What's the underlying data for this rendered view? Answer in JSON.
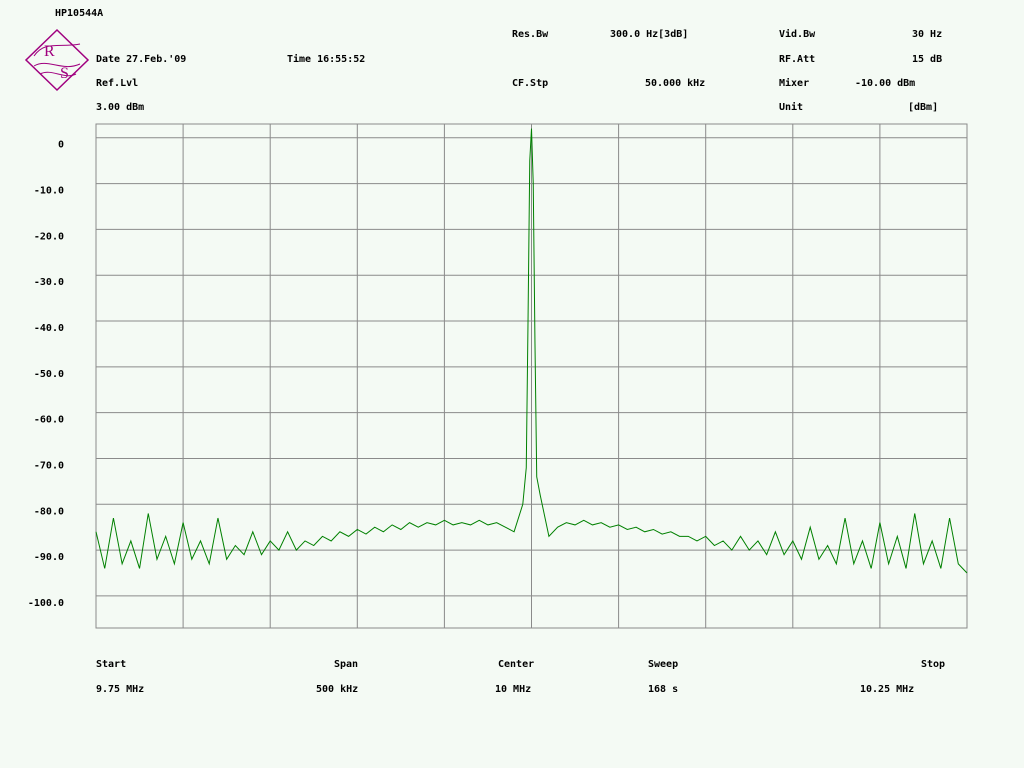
{
  "header": {
    "title": "HP10544A",
    "logo": [
      "R",
      "S"
    ],
    "date": "Date 27.Feb.'09",
    "time": "Time 16:55:52",
    "ref_lvl": {
      "label": "Ref.Lvl",
      "value": "3.00 dBm"
    },
    "res_bw": {
      "label": "Res.Bw",
      "value": "300.0 Hz[3dB]"
    },
    "cf_stp": {
      "label": "CF.Stp",
      "value": "50.000 kHz"
    },
    "vid_bw": {
      "label": "Vid.Bw",
      "value": "30 Hz"
    },
    "rf_att": {
      "label": "RF.Att",
      "value": "15 dB"
    },
    "mixer": {
      "label": "Mixer",
      "value": "-10.00 dBm"
    },
    "unit": {
      "label": "Unit",
      "value": "[dBm]"
    }
  },
  "footer": {
    "start": {
      "label": "Start",
      "value": "9.75 MHz"
    },
    "span": {
      "label": "Span",
      "value": "500 kHz"
    },
    "center": {
      "label": "Center",
      "value": "10 MHz"
    },
    "sweep": {
      "label": "Sweep",
      "value": "168 s"
    },
    "stop": {
      "label": "Stop",
      "value": "10.25 MHz"
    }
  },
  "chart_data": {
    "type": "line",
    "color": "#008000",
    "grid": true,
    "xlim": [
      9.75,
      10.25
    ],
    "xticks": [
      9.75,
      9.8,
      9.85,
      9.9,
      9.95,
      10.0,
      10.05,
      10.1,
      10.15,
      10.2,
      10.25
    ],
    "ylim": [
      -107,
      3
    ],
    "yticks": [
      0,
      {
        "value": -10,
        "label": "-10.0"
      },
      {
        "value": -20,
        "label": "-20.0"
      },
      {
        "value": -30,
        "label": "-30.0"
      },
      {
        "value": -40,
        "label": "-40.0"
      },
      {
        "value": -50,
        "label": "-50.0"
      },
      {
        "value": -60,
        "label": "-60.0"
      },
      {
        "value": -70,
        "label": "-70.0"
      },
      {
        "value": -80,
        "label": "-80.0"
      },
      {
        "value": -90,
        "label": "-90.0"
      },
      {
        "value": -100,
        "label": "-100.0"
      }
    ],
    "x": [
      9.75,
      9.755,
      9.76,
      9.765,
      9.77,
      9.775,
      9.78,
      9.785,
      9.79,
      9.795,
      9.8,
      9.805,
      9.81,
      9.815,
      9.82,
      9.825,
      9.83,
      9.835,
      9.84,
      9.845,
      9.85,
      9.855,
      9.86,
      9.865,
      9.87,
      9.875,
      9.88,
      9.885,
      9.89,
      9.895,
      9.9,
      9.905,
      9.91,
      9.915,
      9.92,
      9.925,
      9.93,
      9.935,
      9.94,
      9.945,
      9.95,
      9.955,
      9.96,
      9.965,
      9.97,
      9.975,
      9.98,
      9.985,
      9.99,
      9.995,
      9.997,
      9.998,
      9.999,
      10.0,
      10.001,
      10.002,
      10.003,
      10.005,
      10.01,
      10.015,
      10.02,
      10.025,
      10.03,
      10.035,
      10.04,
      10.045,
      10.05,
      10.055,
      10.06,
      10.065,
      10.07,
      10.075,
      10.08,
      10.085,
      10.09,
      10.095,
      10.1,
      10.105,
      10.11,
      10.115,
      10.12,
      10.125,
      10.13,
      10.135,
      10.14,
      10.145,
      10.15,
      10.155,
      10.16,
      10.165,
      10.17,
      10.175,
      10.18,
      10.185,
      10.19,
      10.195,
      10.2,
      10.205,
      10.21,
      10.215,
      10.22,
      10.225,
      10.23,
      10.235,
      10.24,
      10.245,
      10.25
    ],
    "values": [
      -86,
      -94,
      -83,
      -93,
      -88,
      -94,
      -82,
      -92,
      -87,
      -93,
      -84,
      -92,
      -88,
      -93,
      -83,
      -92,
      -89,
      -91,
      -86,
      -91,
      -88,
      -90,
      -86,
      -90,
      -88,
      -89,
      -87,
      -88,
      -86,
      -87,
      -85.5,
      -86.5,
      -85,
      -86,
      -84.5,
      -85.5,
      -84,
      -85,
      -84,
      -84.5,
      -83.5,
      -84.5,
      -84,
      -84.5,
      -83.5,
      -84.5,
      -84,
      -85,
      -86,
      -80,
      -72,
      -40,
      -5,
      2,
      -10,
      -45,
      -74,
      -78,
      -87,
      -85,
      -84,
      -84.5,
      -83.5,
      -84.5,
      -84,
      -85,
      -84.5,
      -85.5,
      -85,
      -86,
      -85.5,
      -86.5,
      -86,
      -87,
      -87,
      -88,
      -87,
      -89,
      -88,
      -90,
      -87,
      -90,
      -88,
      -91,
      -86,
      -91,
      -88,
      -92,
      -85,
      -92,
      -89,
      -93,
      -83,
      -93,
      -88,
      -94,
      -84,
      -93,
      -87,
      -94,
      -82,
      -93,
      -88,
      -94,
      -83,
      -93,
      -95
    ]
  }
}
